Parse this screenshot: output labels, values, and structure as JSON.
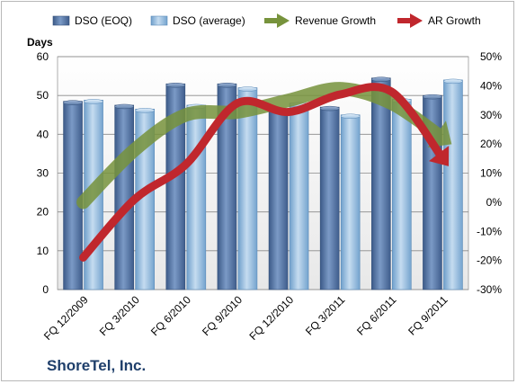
{
  "chart_data": {
    "type": "bar",
    "company": "ShoreTel, Inc.",
    "ylabel": "Days",
    "ylim": [
      0,
      60
    ],
    "y_ticks": [
      "0",
      "10",
      "20",
      "30",
      "40",
      "50",
      "60"
    ],
    "y2lim": [
      -30,
      50
    ],
    "y2_ticks": [
      "-30%",
      "-20%",
      "-10%",
      "0%",
      "10%",
      "20%",
      "30%",
      "40%",
      "50%"
    ],
    "categories": [
      "FQ 12/2009",
      "FQ 3/2010",
      "FQ 6/2010",
      "FQ 9/2010",
      "FQ 12/2010",
      "FQ 3/2011",
      "FQ 6/2011",
      "FQ 9/2011"
    ],
    "series": [
      {
        "name": "DSO (EOQ)",
        "kind": "bar",
        "axis": "left",
        "color": "#4f6f9f",
        "values": [
          48.5,
          47.5,
          53,
          53,
          46.5,
          47,
          54.5,
          50
        ]
      },
      {
        "name": "DSO (average)",
        "kind": "bar",
        "axis": "left",
        "color": "#8cb7dc",
        "values": [
          48.8,
          46.5,
          47.5,
          52,
          48,
          45,
          49,
          54
        ]
      },
      {
        "name": "Revenue Growth",
        "kind": "arrow-line",
        "axis": "right",
        "color": "#77933c",
        "values": [
          0,
          18,
          30,
          31,
          35,
          39,
          34,
          22
        ]
      },
      {
        "name": "AR Growth",
        "kind": "arrow-line",
        "axis": "right",
        "color": "#c0272d",
        "values": [
          -19,
          1,
          13,
          34,
          31,
          37,
          38,
          15
        ]
      }
    ],
    "legend_position": "top",
    "grid": true
  }
}
